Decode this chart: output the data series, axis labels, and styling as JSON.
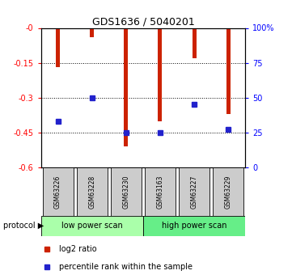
{
  "title": "GDS1636 / 5040201",
  "samples": [
    "GSM63226",
    "GSM63228",
    "GSM63230",
    "GSM63163",
    "GSM63227",
    "GSM63229"
  ],
  "log2_ratios": [
    -0.17,
    -0.04,
    -0.51,
    -0.4,
    -0.13,
    -0.37
  ],
  "percentile_ranks": [
    33,
    50,
    25,
    25,
    45,
    27
  ],
  "ylim_left": [
    -0.6,
    0.0
  ],
  "ylim_right": [
    0,
    100
  ],
  "left_yticks": [
    0.0,
    -0.15,
    -0.3,
    -0.45,
    -0.6
  ],
  "left_yticklabels": [
    "-0",
    "-0.15",
    "-0.3",
    "-0.45",
    "-0.6"
  ],
  "right_yticks": [
    0,
    25,
    50,
    75,
    100
  ],
  "right_yticklabels": [
    "0",
    "25",
    "50",
    "75",
    "100%"
  ],
  "bar_color": "#CC2200",
  "marker_color": "#2222CC",
  "protocol_labels": [
    "low power scan",
    "high power scan"
  ],
  "protocol_colors": [
    "#AAFFAA",
    "#66EE88"
  ],
  "sample_bg_color": "#CCCCCC",
  "legend_items": [
    "log2 ratio",
    "percentile rank within the sample"
  ]
}
